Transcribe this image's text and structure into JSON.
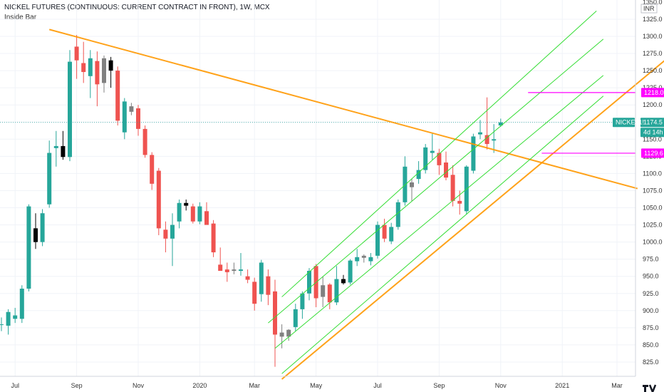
{
  "header": {
    "title": "NICKEL FUTURES (CONTINUOUS: CURRENT CONTRACT IN FRONT), 1W, MCX",
    "indicator": "Inside Bar"
  },
  "currency": "INR",
  "colors": {
    "bull": "#26a69a",
    "bear": "#ef5350",
    "inside_bull": "#808080",
    "inside_bear": "#000000",
    "trendline": "#ff9800",
    "channel": "#33dd33",
    "level": "#ff00ff",
    "price_tag": "#26a69a"
  },
  "labels": {
    "symbol_tag": "NICKEL1!",
    "countdown_tag": "4d 14h"
  },
  "chart_data": {
    "type": "candlestick",
    "title": "NICKEL FUTURES (CONTINUOUS: CURRENT CONTRACT IN FRONT), 1W, MCX",
    "timeframe": "1W",
    "exchange": "MCX",
    "currency": "INR",
    "ylim": [
      800,
      1350
    ],
    "y_ticks": [
      825,
      850,
      875,
      900,
      925,
      950,
      975,
      1000,
      1025,
      1050,
      1075,
      1100,
      1125,
      1150,
      1175,
      1200,
      1225,
      1250,
      1275,
      1300,
      1325
    ],
    "y_tick_labels": [
      "825.0",
      "850.0",
      "875.0",
      "900.0",
      "925.0",
      "950.0",
      "975.0",
      "1000.0",
      "1025.0",
      "1050.0",
      "1075.0",
      "1100.0",
      "1125.0",
      "1150.0",
      "1175.0",
      "1200.0",
      "1225.0",
      "1250.0",
      "1275.0",
      "1300.0",
      "1325.0"
    ],
    "top_partial_tick": "1350.0",
    "x_ticks": [
      {
        "label": "Jul",
        "week": 2
      },
      {
        "label": "Sep",
        "week": 11
      },
      {
        "label": "Nov",
        "week": 20
      },
      {
        "label": "2020",
        "week": 29
      },
      {
        "label": "Mar",
        "week": 37
      },
      {
        "label": "May",
        "week": 46
      },
      {
        "label": "Jul",
        "week": 55
      },
      {
        "label": "Sep",
        "week": 64
      },
      {
        "label": "Nov",
        "week": 73
      },
      {
        "label": "2021",
        "week": 82
      },
      {
        "label": "Mar",
        "week": 90
      }
    ],
    "candles": [
      {
        "o": 880,
        "h": 890,
        "l": 870,
        "c": 880
      },
      {
        "o": 878,
        "h": 902,
        "l": 865,
        "c": 898
      },
      {
        "o": 888,
        "h": 904,
        "l": 882,
        "c": 893
      },
      {
        "o": 888,
        "h": 937,
        "l": 882,
        "c": 932
      },
      {
        "o": 932,
        "h": 1055,
        "l": 928,
        "c": 1052
      },
      {
        "o": 1020,
        "h": 1042,
        "l": 990,
        "c": 1000
      },
      {
        "o": 1000,
        "h": 1048,
        "l": 994,
        "c": 1042
      },
      {
        "o": 1055,
        "h": 1148,
        "l": 1050,
        "c": 1130
      },
      {
        "o": 1137,
        "h": 1162,
        "l": 1110,
        "c": 1140
      },
      {
        "o": 1140,
        "h": 1162,
        "l": 1120,
        "c": 1124
      },
      {
        "o": 1124,
        "h": 1280,
        "l": 1118,
        "c": 1263
      },
      {
        "o": 1285,
        "h": 1302,
        "l": 1238,
        "c": 1265
      },
      {
        "o": 1261,
        "h": 1292,
        "l": 1232,
        "c": 1248
      },
      {
        "o": 1242,
        "h": 1280,
        "l": 1210,
        "c": 1268
      },
      {
        "o": 1264,
        "h": 1278,
        "l": 1198,
        "c": 1230
      },
      {
        "o": 1232,
        "h": 1272,
        "l": 1218,
        "c": 1268
      },
      {
        "o": 1265,
        "h": 1270,
        "l": 1225,
        "c": 1250
      },
      {
        "o": 1250,
        "h": 1256,
        "l": 1170,
        "c": 1177
      },
      {
        "o": 1160,
        "h": 1210,
        "l": 1150,
        "c": 1205
      },
      {
        "o": 1190,
        "h": 1203,
        "l": 1185,
        "c": 1198
      },
      {
        "o": 1195,
        "h": 1200,
        "l": 1155,
        "c": 1165
      },
      {
        "o": 1165,
        "h": 1170,
        "l": 1123,
        "c": 1127
      },
      {
        "o": 1127,
        "h": 1131,
        "l": 1076,
        "c": 1085
      },
      {
        "o": 1104,
        "h": 1108,
        "l": 1010,
        "c": 1020
      },
      {
        "o": 1018,
        "h": 1030,
        "l": 985,
        "c": 1005
      },
      {
        "o": 1005,
        "h": 1042,
        "l": 965,
        "c": 1025
      },
      {
        "o": 1030,
        "h": 1062,
        "l": 1020,
        "c": 1057
      },
      {
        "o": 1057,
        "h": 1062,
        "l": 1046,
        "c": 1053
      },
      {
        "o": 1052,
        "h": 1056,
        "l": 1027,
        "c": 1030
      },
      {
        "o": 1030,
        "h": 1058,
        "l": 1026,
        "c": 1052
      },
      {
        "o": 1045,
        "h": 1058,
        "l": 1025,
        "c": 1025
      },
      {
        "o": 1027,
        "h": 1032,
        "l": 978,
        "c": 985
      },
      {
        "o": 967,
        "h": 992,
        "l": 960,
        "c": 958
      },
      {
        "o": 960,
        "h": 970,
        "l": 942,
        "c": 956
      },
      {
        "o": 958,
        "h": 970,
        "l": 953,
        "c": 960
      },
      {
        "o": 958,
        "h": 984,
        "l": 951,
        "c": 960
      },
      {
        "o": 950,
        "h": 960,
        "l": 940,
        "c": 945
      },
      {
        "o": 942,
        "h": 948,
        "l": 900,
        "c": 910
      },
      {
        "o": 924,
        "h": 974,
        "l": 913,
        "c": 970
      },
      {
        "o": 950,
        "h": 960,
        "l": 908,
        "c": 923
      },
      {
        "o": 928,
        "h": 945,
        "l": 818,
        "c": 865
      },
      {
        "o": 862,
        "h": 880,
        "l": 845,
        "c": 868
      },
      {
        "o": 862,
        "h": 873,
        "l": 856,
        "c": 872
      },
      {
        "o": 876,
        "h": 910,
        "l": 870,
        "c": 902
      },
      {
        "o": 902,
        "h": 928,
        "l": 888,
        "c": 925
      },
      {
        "o": 925,
        "h": 962,
        "l": 915,
        "c": 958
      },
      {
        "o": 965,
        "h": 968,
        "l": 905,
        "c": 918
      },
      {
        "o": 920,
        "h": 950,
        "l": 905,
        "c": 937
      },
      {
        "o": 938,
        "h": 940,
        "l": 902,
        "c": 912
      },
      {
        "o": 912,
        "h": 965,
        "l": 908,
        "c": 946
      },
      {
        "o": 946,
        "h": 952,
        "l": 938,
        "c": 940
      },
      {
        "o": 941,
        "h": 975,
        "l": 938,
        "c": 973
      },
      {
        "o": 972,
        "h": 990,
        "l": 965,
        "c": 978
      },
      {
        "o": 977,
        "h": 982,
        "l": 970,
        "c": 980
      },
      {
        "o": 972,
        "h": 984,
        "l": 966,
        "c": 978
      },
      {
        "o": 980,
        "h": 1030,
        "l": 976,
        "c": 1025
      },
      {
        "o": 1025,
        "h": 1034,
        "l": 1000,
        "c": 1005
      },
      {
        "o": 1001,
        "h": 1028,
        "l": 997,
        "c": 1022
      },
      {
        "o": 1022,
        "h": 1062,
        "l": 1018,
        "c": 1058
      },
      {
        "o": 1058,
        "h": 1125,
        "l": 1053,
        "c": 1110
      },
      {
        "o": 1080,
        "h": 1092,
        "l": 1060,
        "c": 1087
      },
      {
        "o": 1092,
        "h": 1118,
        "l": 1085,
        "c": 1105
      },
      {
        "o": 1105,
        "h": 1143,
        "l": 1100,
        "c": 1138
      },
      {
        "o": 1130,
        "h": 1158,
        "l": 1120,
        "c": 1133
      },
      {
        "o": 1130,
        "h": 1136,
        "l": 1098,
        "c": 1112
      },
      {
        "o": 1116,
        "h": 1132,
        "l": 1090,
        "c": 1094
      },
      {
        "o": 1098,
        "h": 1112,
        "l": 1052,
        "c": 1060
      },
      {
        "o": 1060,
        "h": 1075,
        "l": 1040,
        "c": 1056
      },
      {
        "o": 1045,
        "h": 1112,
        "l": 1040,
        "c": 1110
      },
      {
        "o": 1104,
        "h": 1158,
        "l": 1100,
        "c": 1154
      },
      {
        "o": 1157,
        "h": 1178,
        "l": 1150,
        "c": 1160
      },
      {
        "o": 1156,
        "h": 1211,
        "l": 1135,
        "c": 1143
      },
      {
        "o": 1148,
        "h": 1172,
        "l": 1130,
        "c": 1150
      },
      {
        "o": 1170,
        "h": 1180,
        "l": 1168,
        "c": 1174.5
      }
    ],
    "lines": [
      {
        "kind": "trendline",
        "from": [
          7,
          1310
        ],
        "to": [
          93,
          1078
        ]
      },
      {
        "kind": "channel",
        "from": [
          41,
          920
        ],
        "to": [
          87,
          1337
        ]
      },
      {
        "kind": "channel",
        "from": [
          39,
          882
        ],
        "to": [
          88,
          1296
        ]
      },
      {
        "kind": "channel",
        "from": [
          40,
          845
        ],
        "to": [
          88,
          1243
        ]
      },
      {
        "kind": "channel",
        "from": [
          41,
          808
        ],
        "to": [
          88,
          1213
        ]
      },
      {
        "kind": "trendline",
        "from": [
          41,
          800
        ],
        "to": [
          97,
          1265
        ]
      }
    ],
    "levels": [
      {
        "value": 1218.0,
        "label": "1218.0",
        "from_week": 77
      },
      {
        "value": 1129.6,
        "label": "1129.6",
        "from_week": 79
      }
    ],
    "last_price": {
      "value": 1174.5,
      "label": "1174.5"
    },
    "watermark": "TV"
  }
}
